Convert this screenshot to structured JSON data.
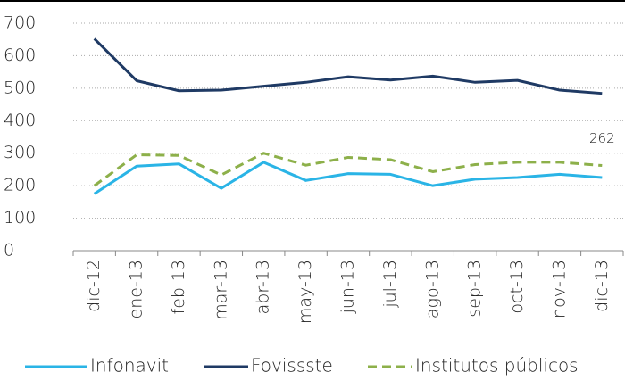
{
  "chart_data": {
    "type": "line",
    "categories": [
      "dic-12",
      "ene-13",
      "feb-13",
      "mar-13",
      "abr-13",
      "may-13",
      "jun-13",
      "jul-13",
      "ago-13",
      "sep-13",
      "oct-13",
      "nov-13",
      "dic-13"
    ],
    "series": [
      {
        "name": "Infonavit",
        "color": "#2ab4e6",
        "dashed": false,
        "values": [
          175,
          260,
          267,
          192,
          272,
          216,
          237,
          235,
          200,
          220,
          225,
          235,
          225
        ]
      },
      {
        "name": "Fovissste",
        "color": "#1f3a64",
        "dashed": false,
        "values": [
          652,
          523,
          492,
          494,
          506,
          518,
          535,
          525,
          537,
          518,
          524,
          494,
          484
        ]
      },
      {
        "name": "Institutos públicos",
        "color": "#8db04a",
        "dashed": true,
        "values": [
          200,
          295,
          293,
          233,
          300,
          263,
          287,
          280,
          243,
          265,
          272,
          272,
          262
        ],
        "data_label_index": 12
      }
    ],
    "ylim": [
      0,
      700
    ],
    "yticks": [
      0,
      100,
      200,
      300,
      400,
      500,
      600,
      700
    ],
    "grid": true,
    "legend": "bottom"
  }
}
